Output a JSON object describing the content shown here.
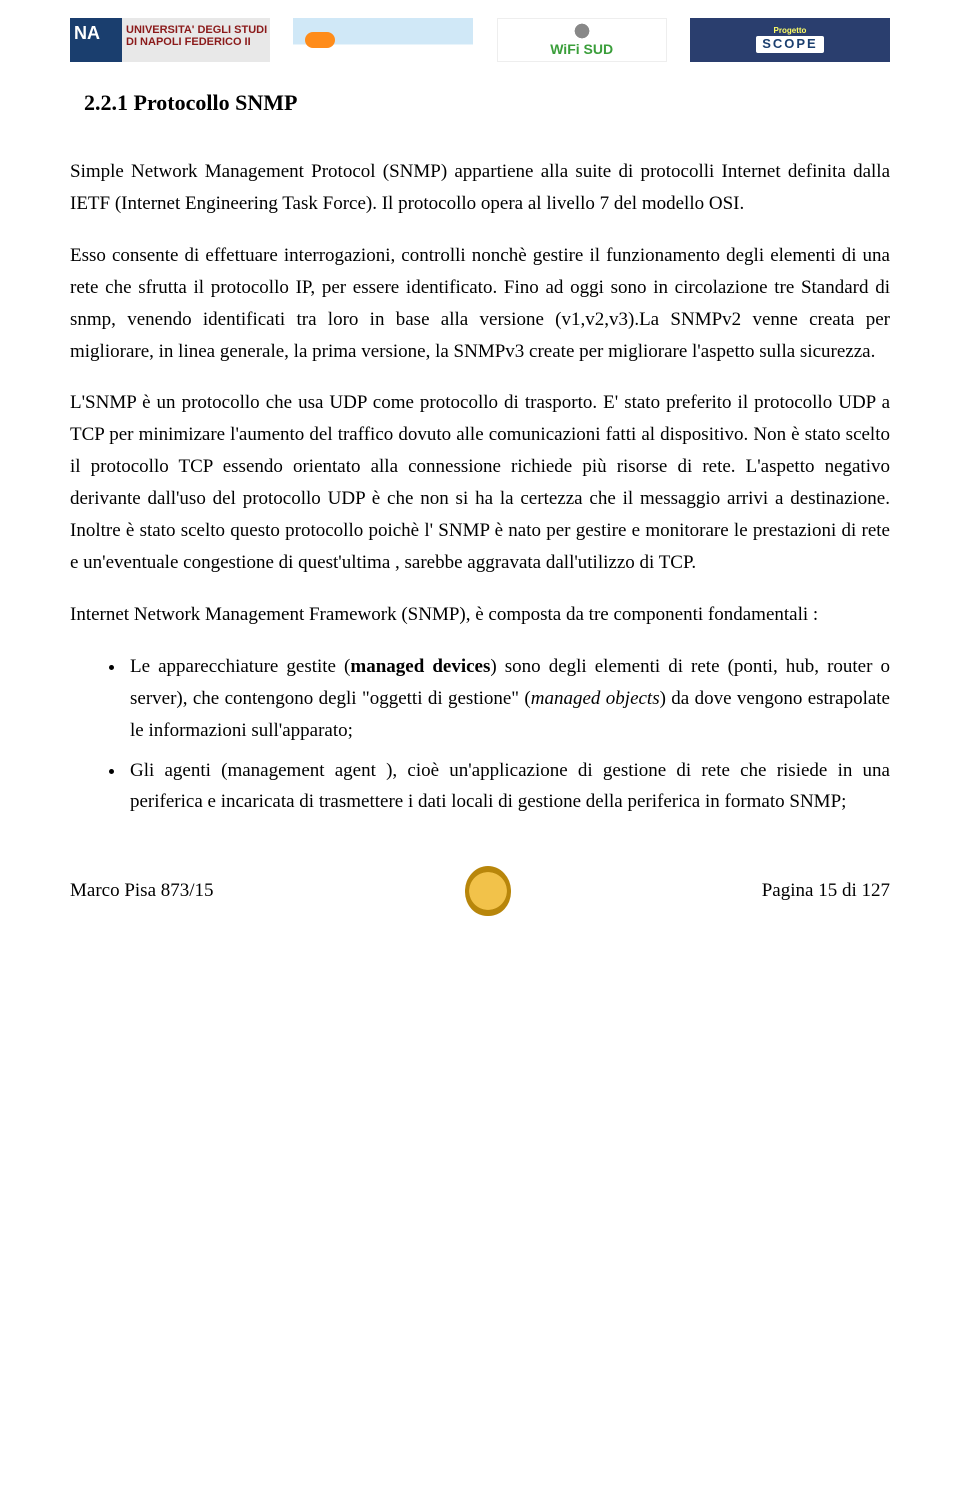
{
  "header": {
    "logo_unina_text": "UNIVERSITA' DEGLI STUDI DI\nNAPOLI FEDERICO II",
    "logo_wifisud_text": "WiFi SUD",
    "logo_scope_top": "Progetto",
    "logo_scope_main": "SCOPE"
  },
  "section": {
    "number": "2.2.1",
    "title": "Protocollo SNMP"
  },
  "paragraphs": {
    "p1": "Simple Network Management Protocol (SNMP) appartiene alla suite di protocolli Internet definita dalla IETF (Internet Engineering Task Force). Il protocollo opera al livello 7 del modello OSI.",
    "p2": "Esso consente di effettuare interrogazioni, controlli  nonchè  gestire il funzionamento degli elementi di una rete che sfrutta il protocollo IP, per essere identificato. Fino ad oggi sono in circolazione tre Standard di snmp, venendo identificati tra loro in base alla versione (v1,v2,v3).La SNMPv2 venne creata per migliorare, in linea generale, la prima versione, la SNMPv3 create per migliorare l'aspetto sulla sicurezza.",
    "p3": "L'SNMP è un protocollo che usa UDP come protocollo di trasporto. E' stato preferito il protocollo UDP a TCP per  minimizare l'aumento del traffico dovuto alle comunicazioni fatti al dispositivo. Non è stato scelto il protocollo  TCP essendo orientato alla connessione richiede più risorse di rete. L'aspetto negativo derivante dall'uso del protocollo UDP è che non si ha la certezza che il messaggio arrivi a destinazione. Inoltre è stato scelto questo protocollo poichè l' SNMP è nato per gestire e monitorare le prestazioni di rete e un'eventuale congestione di quest'ultima , sarebbe aggravata dall'utilizzo di TCP.",
    "p4": "Internet Network Management Framework (SNMP), è composta da tre componenti fondamentali :"
  },
  "bullets": {
    "b1_pre": "Le apparecchiature gestite (",
    "b1_bold": "managed devices",
    "b1_mid": ") sono degli elementi di rete (ponti, hub, router o server), che contengono degli \"oggetti di gestione\" (",
    "b1_italic": "managed objects",
    "b1_post": ") da dove vengono estrapolate le informazioni sull'apparato;",
    "b2": "Gli agenti (management agent ), cioè un'applicazione di gestione di rete che risiede in una periferica e incaricata di trasmettere i dati locali di gestione della periferica in formato SNMP;"
  },
  "footer": {
    "left": "Marco Pisa 873/15",
    "right": "Pagina 15 di  127"
  }
}
